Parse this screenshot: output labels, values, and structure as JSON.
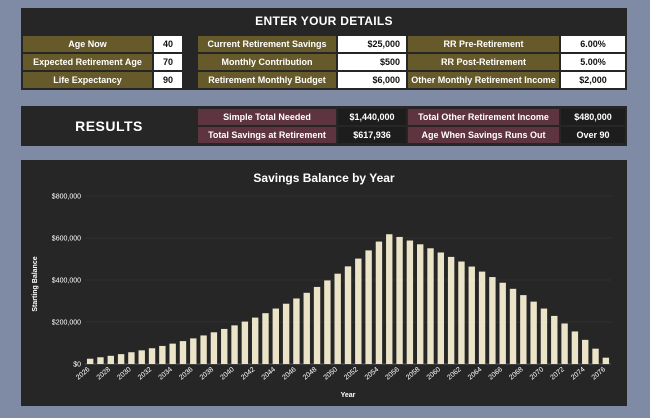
{
  "details": {
    "title": "ENTER YOUR DETAILS",
    "rows": [
      [
        {
          "label": "Age Now",
          "value": "40"
        },
        {
          "label": "Current Retirement Savings",
          "value": "$25,000"
        },
        {
          "label": "RR Pre-Retirement",
          "value": "6.00%"
        }
      ],
      [
        {
          "label": "Expected Retirement Age",
          "value": "70"
        },
        {
          "label": "Monthly Contribution",
          "value": "$500"
        },
        {
          "label": "RR Post-Retirement",
          "value": "5.00%"
        }
      ],
      [
        {
          "label": "Life Expectancy",
          "value": "90"
        },
        {
          "label": "Retirement Monthly Budget",
          "value": "$6,000"
        },
        {
          "label": "Other Monthly Retirement Income",
          "value": "$2,000"
        }
      ]
    ]
  },
  "results": {
    "title": "RESULTS",
    "rows": [
      [
        {
          "label": "Simple Total Needed",
          "value": "$1,440,000"
        },
        {
          "label": "Total Other Retirement Income",
          "value": "$480,000"
        }
      ],
      [
        {
          "label": "Total Savings at Retirement",
          "value": "$617,936"
        },
        {
          "label": "Age When Savings Runs Out",
          "value": "Over 90"
        }
      ]
    ]
  },
  "chart_data": {
    "type": "bar",
    "title": "Savings Balance by Year",
    "xlabel": "Year",
    "ylabel": "Starting Balance",
    "ylim": [
      0,
      800000
    ],
    "yticks": [
      "$0",
      "$200,000",
      "$400,000",
      "$600,000",
      "$800,000"
    ],
    "ytick_values": [
      0,
      200000,
      400000,
      600000,
      800000
    ],
    "xtick_labels": [
      "2026",
      "2028",
      "2030",
      "2032",
      "2034",
      "2036",
      "2038",
      "2040",
      "2042",
      "2044",
      "2046",
      "2048",
      "2050",
      "2052",
      "2054",
      "2056",
      "2058",
      "2060",
      "2062",
      "2064",
      "2066",
      "2068",
      "2070",
      "2072",
      "2074",
      "2076"
    ],
    "bar_color": "#ece4c8",
    "categories": [
      "2026",
      "2027",
      "2028",
      "2029",
      "2030",
      "2031",
      "2032",
      "2033",
      "2034",
      "2035",
      "2036",
      "2037",
      "2038",
      "2039",
      "2040",
      "2041",
      "2042",
      "2043",
      "2044",
      "2045",
      "2046",
      "2047",
      "2048",
      "2049",
      "2050",
      "2051",
      "2052",
      "2053",
      "2054",
      "2055",
      "2056",
      "2057",
      "2058",
      "2059",
      "2060",
      "2061",
      "2062",
      "2063",
      "2064",
      "2065",
      "2066",
      "2067",
      "2068",
      "2069",
      "2070",
      "2071",
      "2072",
      "2073",
      "2074",
      "2075",
      "2076"
    ],
    "values": [
      25000,
      32000,
      39000,
      47000,
      56000,
      65000,
      75000,
      86000,
      97000,
      109000,
      122000,
      136000,
      151000,
      167000,
      184000,
      202000,
      221000,
      242000,
      264000,
      287000,
      312000,
      339000,
      367000,
      398000,
      430000,
      465000,
      502000,
      541000,
      583000,
      617936,
      605000,
      588000,
      570000,
      551000,
      531000,
      510000,
      488000,
      464000,
      440000,
      414000,
      387000,
      358000,
      328000,
      297000,
      264000,
      229000,
      193000,
      155000,
      115000,
      73000,
      30000
    ]
  }
}
